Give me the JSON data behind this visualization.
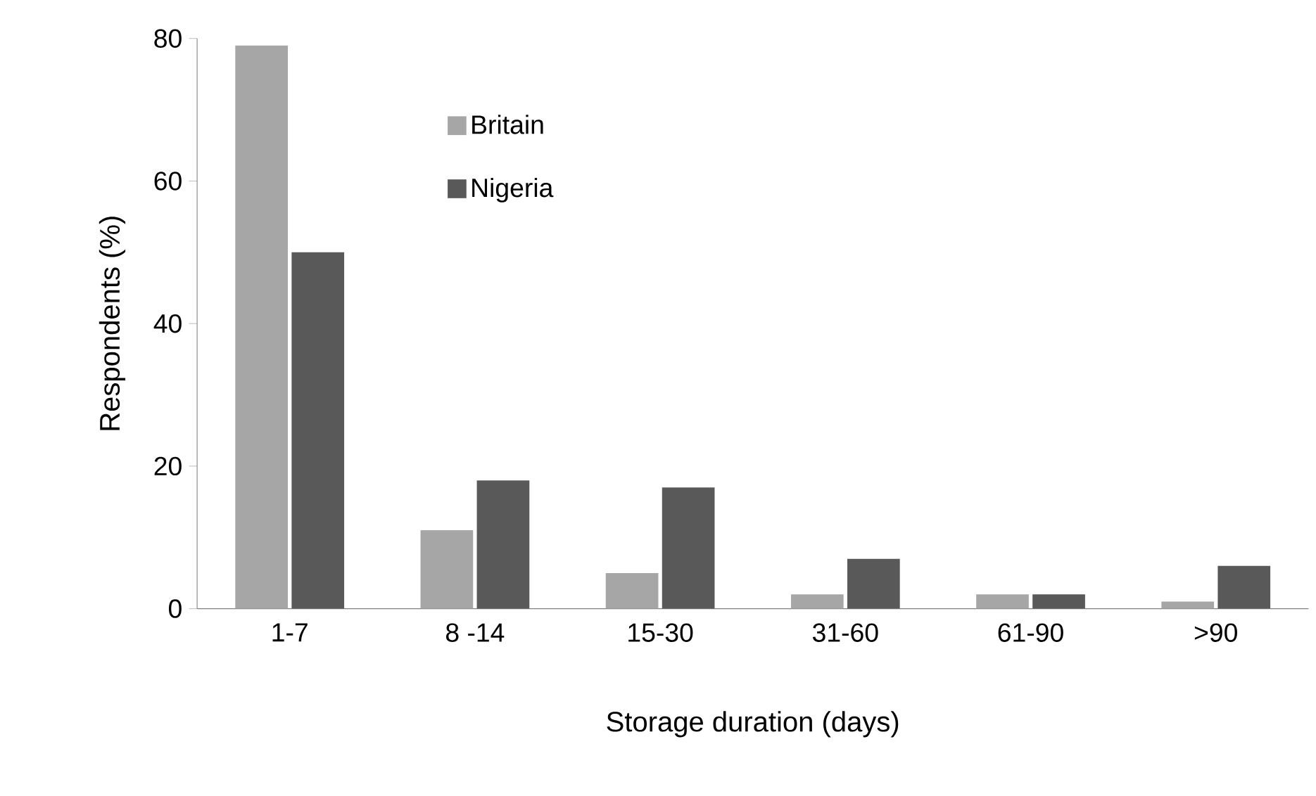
{
  "chart_data": {
    "type": "bar",
    "xlabel": "Storage duration (days)",
    "ylabel": "Respondents (%)",
    "categories": [
      "1-7",
      "8 -14",
      "15-30",
      "31-60",
      "61-90",
      ">90"
    ],
    "series": [
      {
        "name": "Britain",
        "color": "#a6a6a6",
        "values": [
          79,
          11,
          5,
          2,
          2,
          1
        ]
      },
      {
        "name": "Nigeria",
        "color": "#595959",
        "values": [
          50,
          18,
          17,
          7,
          2,
          6
        ]
      }
    ],
    "ylim": [
      0,
      80
    ],
    "yticks": [
      0,
      20,
      40,
      60,
      80
    ],
    "grid": false,
    "legend": "top left"
  }
}
